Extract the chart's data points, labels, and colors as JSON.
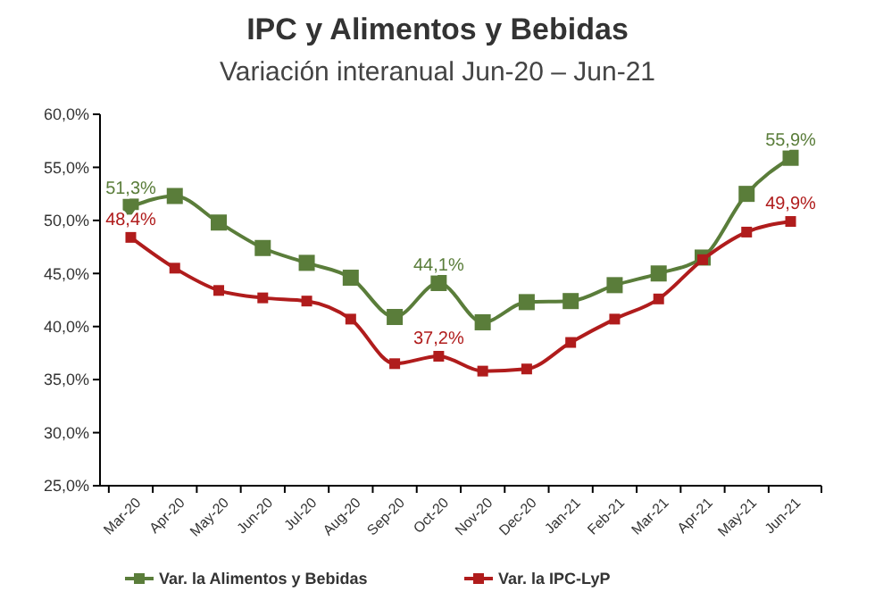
{
  "chart_data": {
    "type": "line",
    "title": "IPC y Alimentos y Bebidas",
    "subtitle": "Variación interanual Jun-20 – Jun-21",
    "categories": [
      "Mar-20",
      "Apr-20",
      "May-20",
      "Jun-20",
      "Jul-20",
      "Aug-20",
      "Sep-20",
      "Oct-20",
      "Nov-20",
      "Dec-20",
      "Jan-21",
      "Feb-21",
      "Mar-21",
      "Apr-21",
      "May-21",
      "Jun-21"
    ],
    "series": [
      {
        "name": "Var. la Alimentos y Bebidas",
        "color": "#5a7d3a",
        "values": [
          51.3,
          52.3,
          49.8,
          47.4,
          46.0,
          44.6,
          40.9,
          44.1,
          40.4,
          42.3,
          42.4,
          43.9,
          45.0,
          46.5,
          52.5,
          55.9
        ],
        "value_labels": [
          "51,3%",
          null,
          null,
          null,
          null,
          null,
          null,
          "44,1%",
          null,
          null,
          null,
          null,
          null,
          null,
          null,
          "55,9%"
        ]
      },
      {
        "name": "Var. la IPC-LyP",
        "color": "#b01c1c",
        "values": [
          48.4,
          45.5,
          43.4,
          42.7,
          42.4,
          40.7,
          36.5,
          37.2,
          35.8,
          36.0,
          38.5,
          40.7,
          42.6,
          46.3,
          48.9,
          49.9
        ],
        "value_labels": [
          "48,4%",
          null,
          null,
          null,
          null,
          null,
          null,
          "37,2%",
          null,
          null,
          null,
          null,
          null,
          null,
          null,
          "49,9%"
        ]
      }
    ],
    "ylim": [
      25,
      60
    ],
    "yticks": [
      {
        "value": 25,
        "label": "25,0%"
      },
      {
        "value": 30,
        "label": "30,0%"
      },
      {
        "value": 35,
        "label": "35,0%"
      },
      {
        "value": 40,
        "label": "40,0%"
      },
      {
        "value": 45,
        "label": "45,0%"
      },
      {
        "value": 50,
        "label": "50,0%"
      },
      {
        "value": 55,
        "label": "55,0%"
      },
      {
        "value": 60,
        "label": "60,0%"
      }
    ],
    "grid": false,
    "legend": "bottom",
    "marker": "square",
    "line_style": "solid"
  }
}
